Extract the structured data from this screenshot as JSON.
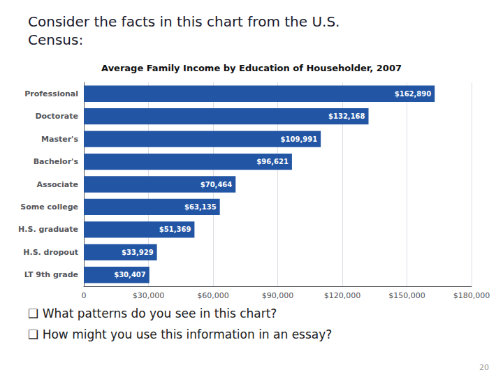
{
  "chart_data": {
    "type": "bar",
    "orientation": "horizontal",
    "title": "Average Family Income by Education of Householder, 2007",
    "annotations": [
      "Consider the facts in this chart from the U.S.\nCensus:",
      "❑ What patterns do you see in this chart?",
      "❑ How might you use this information in an essay?",
      "20"
    ],
    "categories": [
      "LT 9th grade",
      "H.S. dropout",
      "H.S. graduate",
      "Some college",
      "Associate",
      "Bachelor's",
      "Master's",
      "Doctorate",
      "Professional"
    ],
    "values": [
      30407,
      33929,
      51369,
      63135,
      70464,
      96621,
      109991,
      132168,
      162890
    ],
    "value_labels": [
      "$30,407",
      "$33,929",
      "$51,369",
      "$63,135",
      "$70,464",
      "$96,621",
      "$109,991",
      "$132,168",
      "$162,890"
    ],
    "data_labels": true,
    "color": "#2255a4",
    "xlim": [
      0,
      180000
    ],
    "xticks": [
      0,
      {
        "value": 30000,
        "label": "$30,000"
      },
      {
        "value": 60000,
        "label": "$60,000"
      },
      {
        "value": 90000,
        "label": "$90,000"
      },
      {
        "value": 120000,
        "label": "$120,000"
      },
      {
        "value": 150000,
        "label": "$150,000"
      },
      {
        "value": 180000,
        "label": "$180,000"
      }
    ],
    "grid": true
  }
}
